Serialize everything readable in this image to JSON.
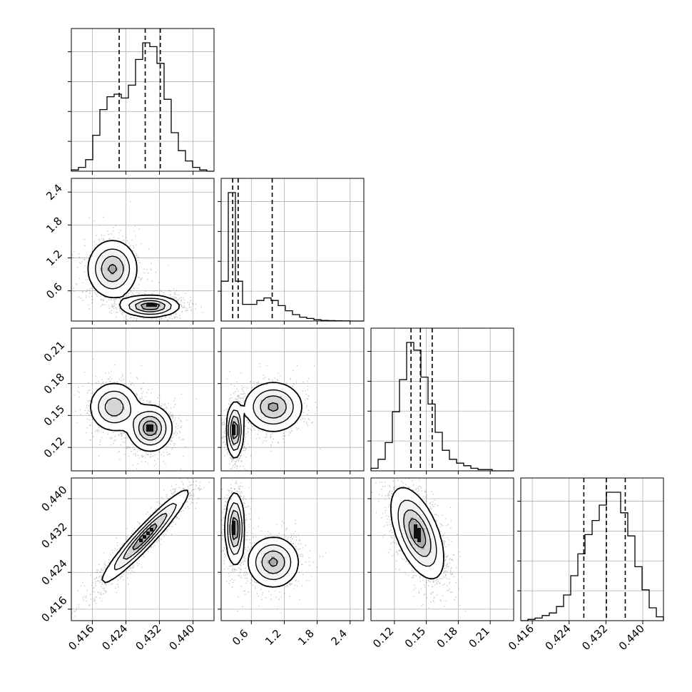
{
  "colors": {
    "frame": "#000000",
    "grid": "#b0b0b0",
    "density": "#000000",
    "background": "#ffffff"
  },
  "chart_data": {
    "type": "corner",
    "title": "",
    "parameters": [
      {
        "name": "",
        "range": [
          0.411,
          0.445
        ],
        "ticks": [
          0.416,
          0.424,
          0.432,
          0.44
        ],
        "tick_labels": [
          "0.416",
          "0.424",
          "0.432",
          "0.440"
        ]
      },
      {
        "name": "",
        "range": [
          0.05,
          2.65
        ],
        "ticks": [
          0.6,
          1.2,
          1.8,
          2.4
        ],
        "tick_labels": [
          "0.6",
          "1.2",
          "1.8",
          "2.4"
        ]
      },
      {
        "name": "",
        "range": [
          0.098,
          0.232
        ],
        "ticks": [
          0.12,
          0.15,
          0.18,
          0.21
        ],
        "tick_labels": [
          "0.12",
          "0.15",
          "0.18",
          "0.21"
        ]
      },
      {
        "name": "",
        "range": [
          0.4135,
          0.4445
        ],
        "ticks": [
          0.416,
          0.424,
          0.432,
          0.44
        ],
        "tick_labels": [
          "0.416",
          "0.424",
          "0.432",
          "0.440"
        ]
      }
    ],
    "histograms": [
      {
        "param": 0,
        "bin_edges": [
          0.411,
          0.4127,
          0.4144,
          0.4161,
          0.4178,
          0.4195,
          0.4212,
          0.4229,
          0.4246,
          0.4263,
          0.428,
          0.4297,
          0.4314,
          0.4331,
          0.4348,
          0.4365,
          0.4382,
          0.4399,
          0.4416,
          0.4433,
          0.445
        ],
        "counts": [
          1,
          3,
          9,
          28,
          48,
          58,
          60,
          57,
          67,
          87,
          100,
          97,
          84,
          56,
          30,
          16,
          8,
          3,
          1,
          0
        ],
        "quantiles": [
          0.4224,
          0.4286,
          0.4322
        ]
      },
      {
        "param": 1,
        "bin_edges": [
          0.05,
          0.18,
          0.31,
          0.44,
          0.57,
          0.7,
          0.83,
          0.96,
          1.09,
          1.22,
          1.35,
          1.48,
          1.61,
          1.74,
          1.87,
          2.0,
          2.13,
          2.26,
          2.39,
          2.52,
          2.65
        ],
        "counts": [
          31,
          100,
          31,
          13,
          13,
          16,
          18,
          16,
          12,
          8,
          5,
          3,
          2,
          1,
          0.5,
          0.3,
          0.2,
          0.1,
          0,
          0
        ],
        "quantiles": [
          0.26,
          0.36,
          0.98
        ]
      },
      {
        "param": 2,
        "bin_edges": [
          0.098,
          0.1047,
          0.1114,
          0.1181,
          0.1248,
          0.1315,
          0.1382,
          0.1449,
          0.1516,
          0.1583,
          0.165,
          0.1717,
          0.1784,
          0.1851,
          0.1918,
          0.1985,
          0.2052,
          0.2119,
          0.2186,
          0.2253,
          0.232
        ],
        "counts": [
          2,
          9,
          22,
          46,
          71,
          100,
          94,
          73,
          52,
          30,
          16,
          9,
          6,
          4,
          2,
          1,
          1,
          0,
          0,
          0
        ],
        "quantiles": [
          0.1356,
          0.1444,
          0.1555
        ]
      },
      {
        "param": 3,
        "bin_edges": [
          0.4135,
          0.41505,
          0.4166,
          0.41815,
          0.4197,
          0.42125,
          0.4228,
          0.42435,
          0.4259,
          0.42745,
          0.429,
          0.43055,
          0.4321,
          0.43365,
          0.4352,
          0.43675,
          0.4383,
          0.43985,
          0.4414,
          0.44295,
          0.4445
        ],
        "counts": [
          0,
          1,
          2,
          4,
          6,
          11,
          20,
          35,
          52,
          67,
          78,
          90,
          100,
          100,
          84,
          66,
          42,
          24,
          10,
          3
        ],
        "quantiles": [
          0.4272,
          0.4321,
          0.4362
        ]
      }
    ],
    "pairs": [
      {
        "x": 0,
        "y": 1,
        "density": "bimodal",
        "modes": [
          {
            "x": 0.4208,
            "y": 1.0,
            "sx": 0.0028,
            "sy": 0.25,
            "r": 0,
            "w": 0.45
          },
          {
            "x": 0.4298,
            "y": 0.32,
            "sx": 0.0032,
            "sy": 0.09,
            "r": 0,
            "w": 0.55
          }
        ]
      },
      {
        "x": 0,
        "y": 2,
        "density": "bimodal",
        "modes": [
          {
            "x": 0.4212,
            "y": 0.158,
            "sx": 0.0028,
            "sy": 0.011,
            "r": 0,
            "w": 0.42
          },
          {
            "x": 0.4298,
            "y": 0.138,
            "sx": 0.0024,
            "sy": 0.01,
            "r": 0,
            "w": 0.58
          }
        ]
      },
      {
        "x": 0,
        "y": 3,
        "density": "correlated",
        "modes": [
          {
            "x": 0.4286,
            "y": 0.4318,
            "sx": 0.0048,
            "sy": 0.0047,
            "r": 0.95,
            "w": 1.0
          }
        ]
      },
      {
        "x": 1,
        "y": 2,
        "density": "bimodal",
        "modes": [
          {
            "x": 0.3,
            "y": 0.136,
            "sx": 0.07,
            "sy": 0.012,
            "r": 0,
            "w": 0.55
          },
          {
            "x": 1.0,
            "y": 0.158,
            "sx": 0.25,
            "sy": 0.011,
            "r": 0,
            "w": 0.45
          }
        ]
      },
      {
        "x": 1,
        "y": 3,
        "density": "bimodal",
        "modes": [
          {
            "x": 0.3,
            "y": 0.4335,
            "sx": 0.08,
            "sy": 0.0036,
            "r": 0,
            "w": 0.55
          },
          {
            "x": 1.0,
            "y": 0.4262,
            "sx": 0.22,
            "sy": 0.0026,
            "r": 0,
            "w": 0.45
          }
        ]
      },
      {
        "x": 2,
        "y": 3,
        "density": "correlated",
        "modes": [
          {
            "x": 0.1415,
            "y": 0.4325,
            "sx": 0.0115,
            "sy": 0.0046,
            "r": -0.55,
            "w": 1.0
          }
        ]
      }
    ],
    "xlabel": "",
    "ylabel": "",
    "grid": true,
    "legend": "none"
  }
}
